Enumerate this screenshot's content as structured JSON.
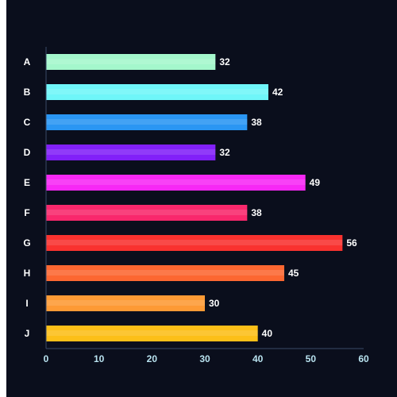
{
  "chart_data": {
    "type": "bar",
    "orientation": "horizontal",
    "categories": [
      "A",
      "B",
      "C",
      "D",
      "E",
      "F",
      "G",
      "H",
      "I",
      "J"
    ],
    "values": [
      32,
      42,
      38,
      32,
      49,
      38,
      56,
      45,
      30,
      40
    ],
    "colors": [
      "#a4f7cc",
      "#6ff6f9",
      "#2a96f3",
      "#8120f9",
      "#f728f5",
      "#f9286c",
      "#f9322f",
      "#fc6731",
      "#fd9a35",
      "#fcbf18"
    ],
    "xlim": [
      0,
      60
    ],
    "xticks": [
      0,
      10,
      20,
      30,
      40,
      50,
      60
    ],
    "grid": false,
    "data_labels": true,
    "title": "",
    "xlabel": "",
    "ylabel": ""
  },
  "colors": {
    "background": "#0a0e1c",
    "axis": "#3a4a66",
    "tick_text": "#b9e3f0",
    "label_text": "#ffffff"
  }
}
